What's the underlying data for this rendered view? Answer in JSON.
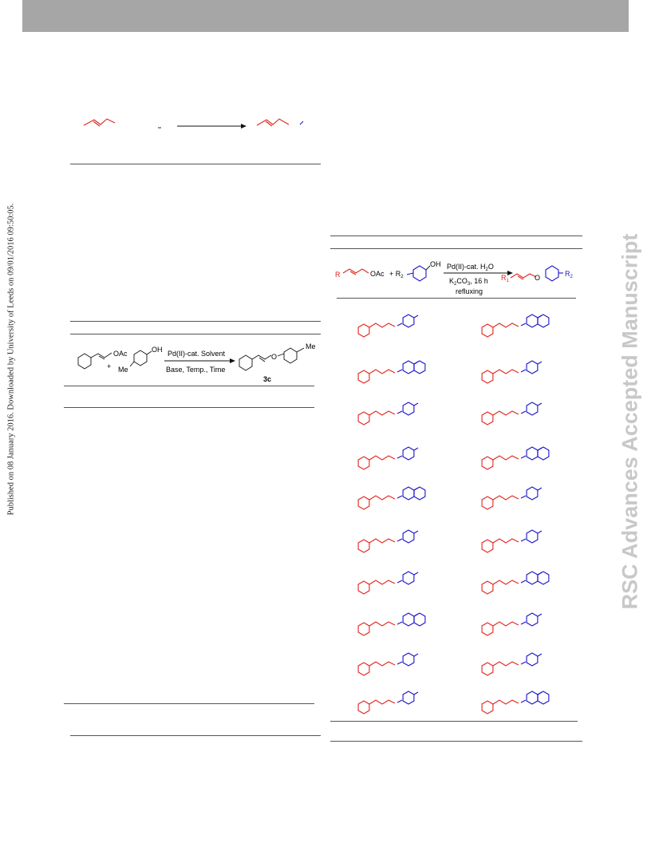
{
  "header": {
    "bar_color": "#a6a6a6"
  },
  "sidebar": {
    "published_note": "Published on 08 January 2016. Downloaded by University of Leeds on 09/01/2016 09:50:05."
  },
  "watermark": {
    "text": "RSC Advances Accepted Manuscript",
    "color": "#c8c8c8"
  },
  "colors": {
    "red": "#e3231c",
    "blue": "#1a14c9"
  },
  "table1": {
    "reagent_oac": "OAc",
    "reagent_oh": "OH",
    "reagent_me": "Me",
    "product_me": "Me",
    "plus": "+",
    "arrow_top": "Pd(II)-cat. Solvent",
    "arrow_bottom": "Base, Temp., Time",
    "product_label": "3c",
    "product_o": "O"
  },
  "table2": {
    "r1": "R",
    "oac": "OAc",
    "plus": "+ R",
    "r2_sub": "2",
    "oh": "OH",
    "arrow_top": "Pd(II)-cat. H",
    "arrow_top_sub": "2",
    "arrow_top_end": "O",
    "arrow_mid": "K",
    "arrow_mid_sub1": "2",
    "arrow_mid_2": "CO",
    "arrow_mid_sub2": "3",
    "arrow_mid_end": ", 16 h",
    "arrow_bottom": "refluxing",
    "prod_r1": "R",
    "prod_r1_sub": "1",
    "prod_o": "O",
    "prod_r2": "R",
    "prod_r2_sub": "2"
  }
}
